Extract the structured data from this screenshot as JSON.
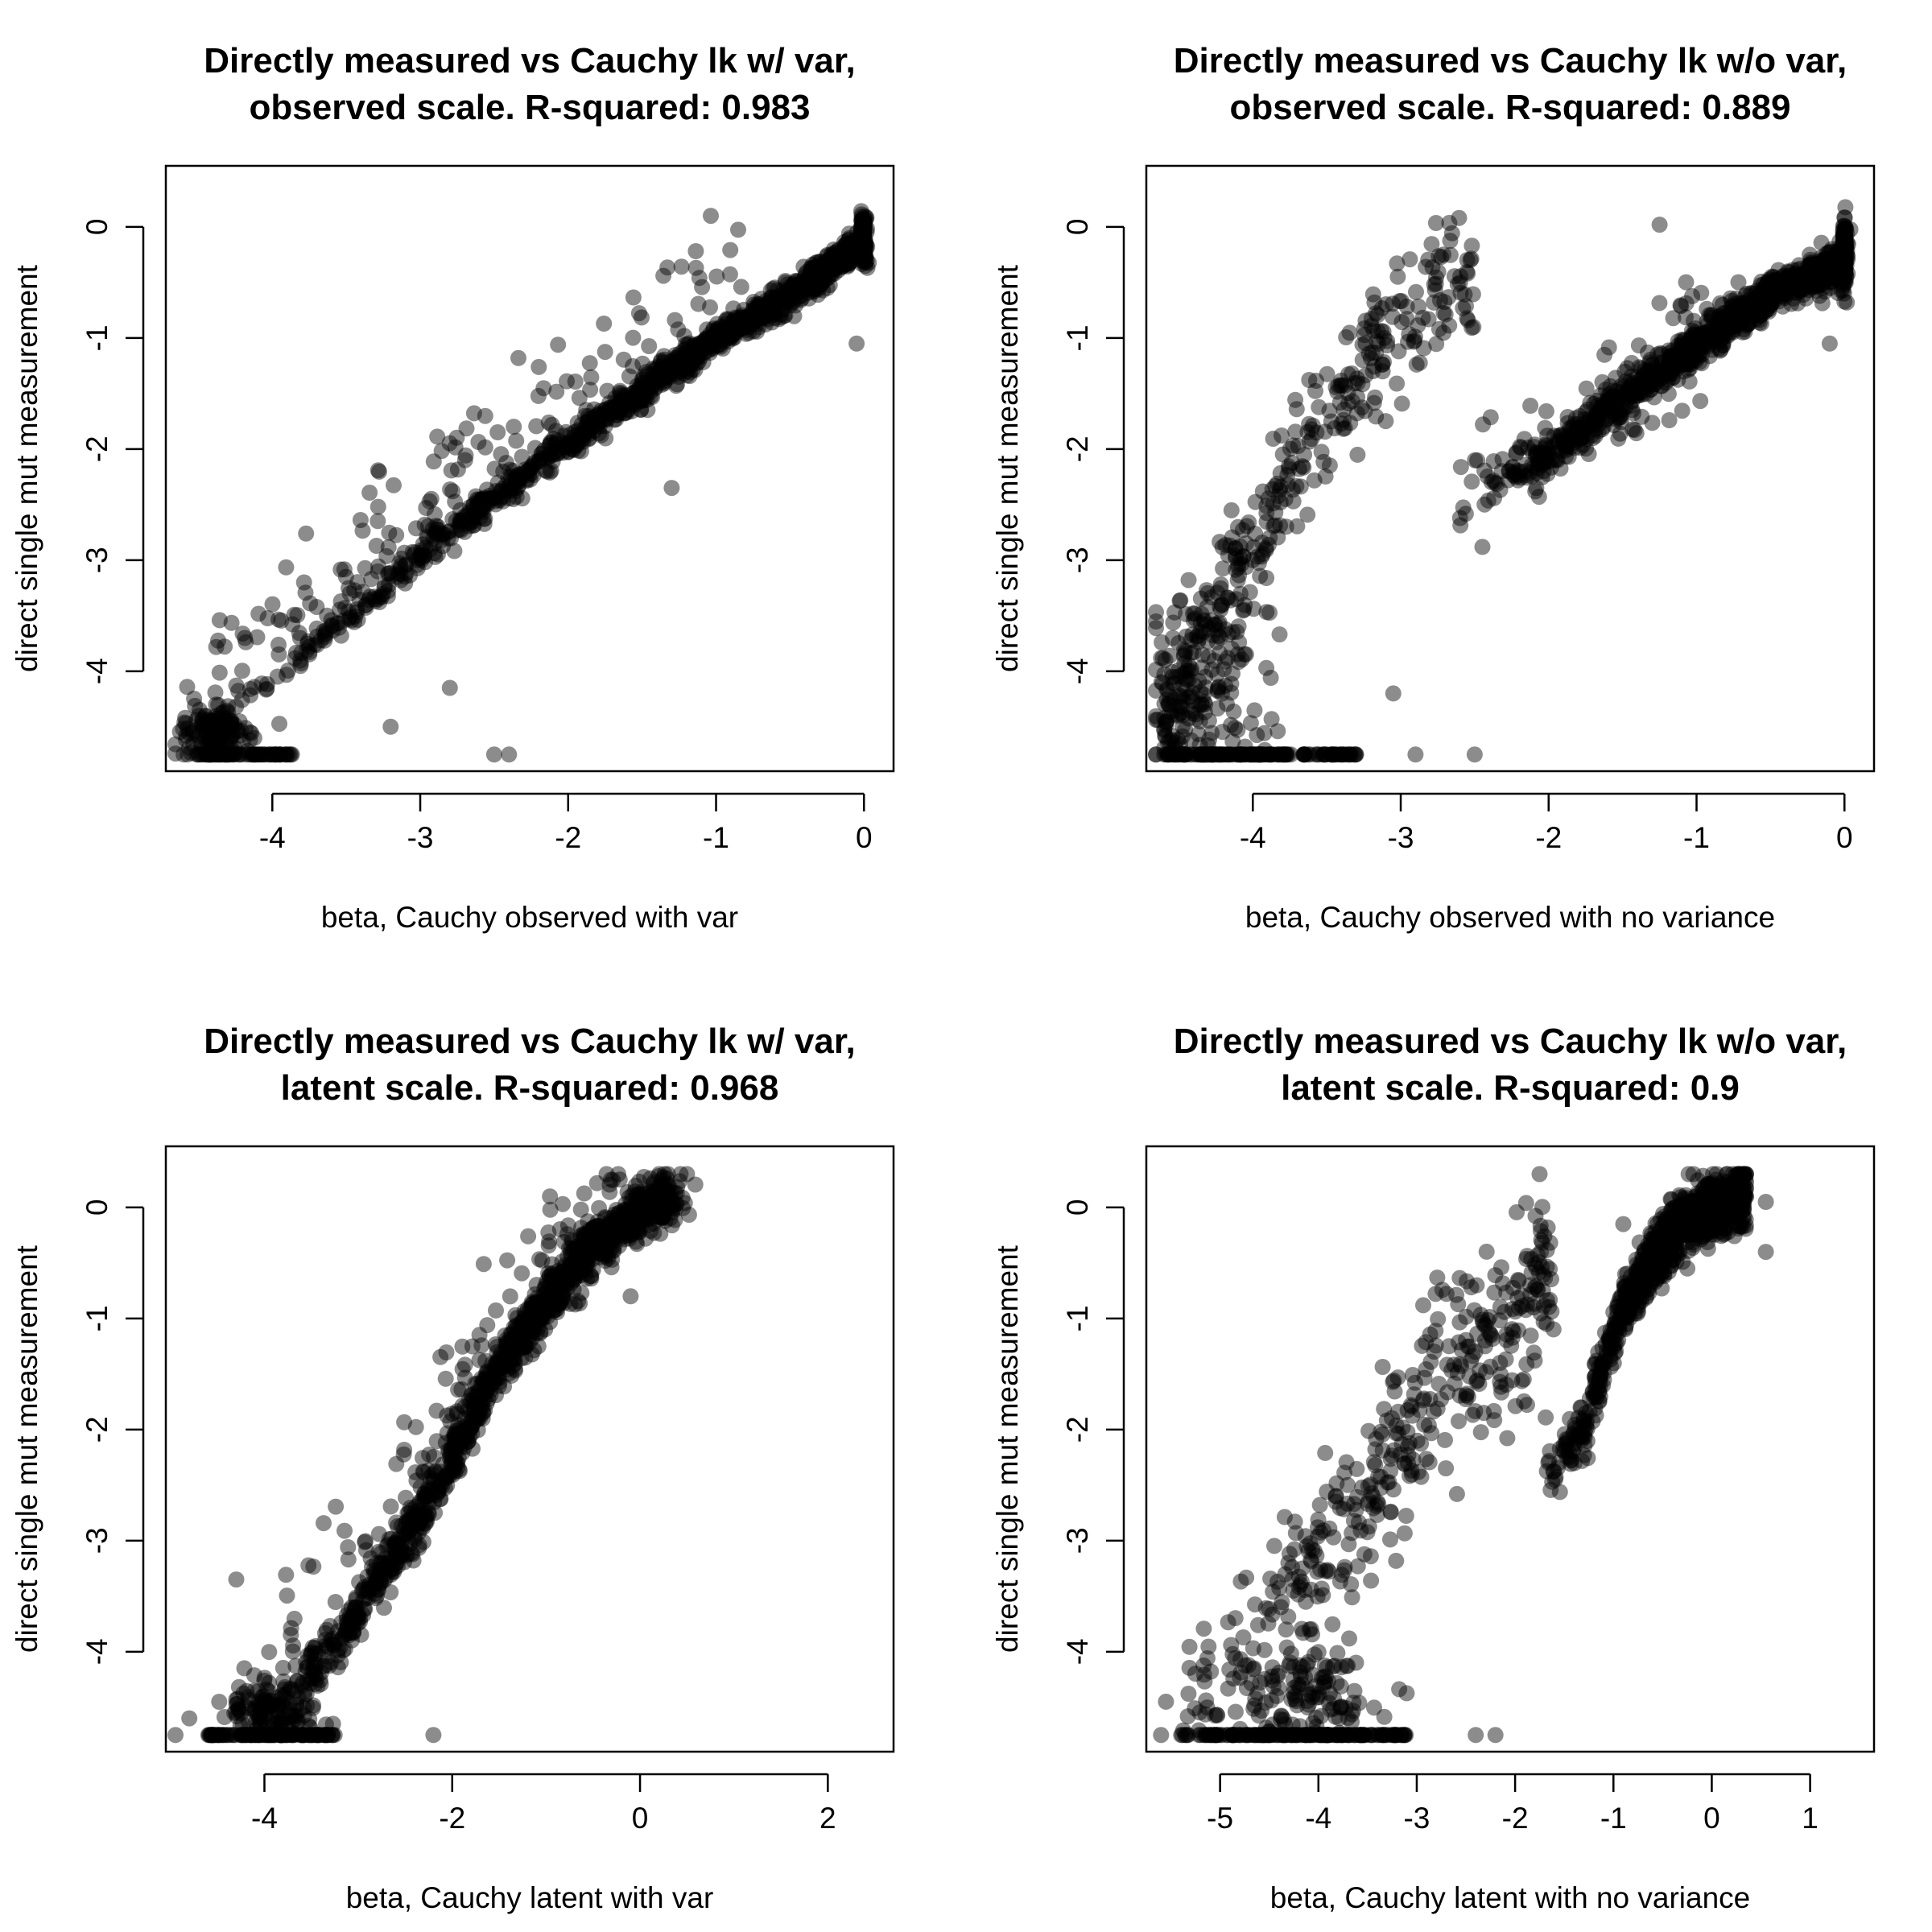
{
  "chart_data": [
    {
      "type": "scatter",
      "title_lines": [
        "Directly measured vs Cauchy lk w/ var,",
        "observed scale. R-squared: 0.983"
      ],
      "xlabel": "beta, Cauchy observed with var",
      "ylabel": "direct single mut measurement",
      "xlim": [
        -4.72,
        0.2
      ],
      "ylim": [
        -4.9,
        0.55
      ],
      "xticks": [
        -4,
        -3,
        -2,
        -1,
        0
      ],
      "yticks": [
        -4,
        -3,
        -2,
        -1,
        0
      ],
      "point_color": "#000000",
      "point_alpha": 0.45,
      "shape": "obs_var"
    },
    {
      "type": "scatter",
      "title_lines": [
        "Directly measured vs Cauchy lk w/o var,",
        "observed scale. R-squared: 0.889"
      ],
      "xlabel": "beta, Cauchy observed with no variance",
      "ylabel": "direct single mut measurement",
      "xlim": [
        -4.72,
        0.2
      ],
      "ylim": [
        -4.9,
        0.55
      ],
      "xticks": [
        -4,
        -3,
        -2,
        -1,
        0
      ],
      "yticks": [
        -4,
        -3,
        -2,
        -1,
        0
      ],
      "point_color": "#000000",
      "point_alpha": 0.45,
      "shape": "obs_novar"
    },
    {
      "type": "scatter",
      "title_lines": [
        "Directly measured vs Cauchy lk w/ var,",
        "latent scale. R-squared: 0.968"
      ],
      "xlabel": "beta, Cauchy latent with var",
      "ylabel": "direct single mut measurement",
      "xlim": [
        -5.05,
        2.7
      ],
      "ylim": [
        -4.9,
        0.55
      ],
      "xticks": [
        -4,
        -2,
        0,
        2
      ],
      "yticks": [
        -4,
        -3,
        -2,
        -1,
        0
      ],
      "point_color": "#000000",
      "point_alpha": 0.45,
      "shape": "lat_var"
    },
    {
      "type": "scatter",
      "title_lines": [
        "Directly measured vs Cauchy lk w/o var,",
        "latent scale. R-squared: 0.9"
      ],
      "xlabel": "beta, Cauchy latent with no variance",
      "ylabel": "direct single mut measurement",
      "xlim": [
        -5.75,
        1.65
      ],
      "ylim": [
        -4.9,
        0.55
      ],
      "xticks": [
        -5,
        -4,
        -3,
        -2,
        -1,
        0,
        1
      ],
      "yticks": [
        -4,
        -3,
        -2,
        -1,
        0
      ],
      "point_color": "#000000",
      "point_alpha": 0.45,
      "shape": "lat_novar"
    }
  ]
}
